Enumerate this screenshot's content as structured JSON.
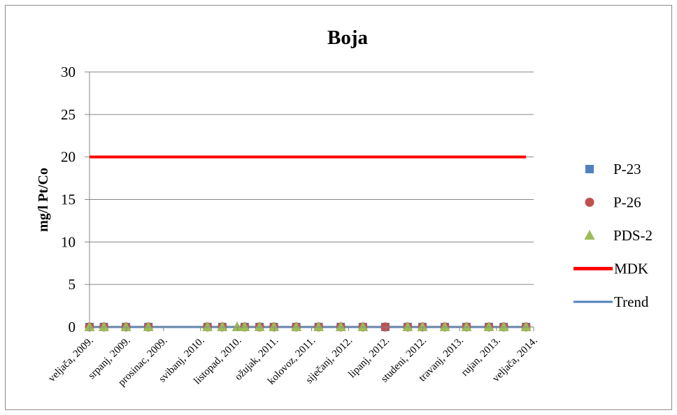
{
  "chart_data": {
    "type": "scatter",
    "title": "Boja",
    "ylabel": "mg/l Pt/Co",
    "xlabel": "",
    "ylim": [
      0,
      30
    ],
    "yticks": [
      0,
      5,
      10,
      15,
      20,
      25,
      30
    ],
    "xlim": [
      "2009-02-01",
      "2014-02-01"
    ],
    "xtick_labels": [
      "veljača, 2009.",
      "srpanj, 2009.",
      "prosinac, 2009.",
      "svibanj, 2010.",
      "listopad, 2010.",
      "ožujak, 2011.",
      "kolovoz, 2011.",
      "siječanj, 2012.",
      "lipanj, 2012.",
      "studeni, 2012.",
      "travanj, 2013.",
      "rujan, 2013.",
      "veljača, 2014."
    ],
    "legend_position": "right",
    "grid": "horizontal",
    "series": [
      {
        "name": "P-23",
        "marker": "square",
        "color": "#4f81bd",
        "x": [
          "2009-02-01",
          "2009-04-01",
          "2009-07-01",
          "2009-10-01",
          "2010-06-01",
          "2010-08-01",
          "2010-11-01",
          "2011-01-01",
          "2011-03-01",
          "2011-06-01",
          "2011-09-01",
          "2011-12-01",
          "2012-03-01",
          "2012-06-01",
          "2012-09-01",
          "2012-11-01",
          "2013-02-01",
          "2013-05-01",
          "2013-08-01",
          "2013-10-01",
          "2014-01-01"
        ],
        "values": [
          0,
          0,
          0,
          0,
          0,
          0,
          0,
          0,
          0,
          0,
          0,
          0,
          0,
          0,
          0,
          0,
          0,
          0,
          0,
          0,
          0
        ]
      },
      {
        "name": "P-26",
        "marker": "circle",
        "color": "#c0504d",
        "x": [
          "2009-02-01",
          "2009-04-01",
          "2009-07-01",
          "2009-10-01",
          "2010-06-01",
          "2010-08-01",
          "2010-11-01",
          "2011-01-01",
          "2011-03-01",
          "2011-06-01",
          "2011-09-01",
          "2011-12-01",
          "2012-03-01",
          "2012-06-01",
          "2012-09-01",
          "2012-11-01",
          "2013-02-01",
          "2013-05-01",
          "2013-08-01",
          "2013-10-01",
          "2014-01-01"
        ],
        "values": [
          0,
          0,
          0,
          0,
          0,
          0,
          0,
          0,
          0,
          0,
          0,
          0,
          0,
          0,
          0,
          0,
          0,
          0,
          0,
          0,
          0
        ]
      },
      {
        "name": "PDS-2",
        "marker": "triangle",
        "color": "#9bbb59",
        "x": [
          "2009-02-01",
          "2009-04-01",
          "2009-07-01",
          "2009-10-01",
          "2010-06-01",
          "2010-08-01",
          "2010-10-01",
          "2010-11-01",
          "2011-01-01",
          "2011-03-01",
          "2011-06-01",
          "2011-09-01",
          "2011-12-01",
          "2012-03-01",
          "2012-09-01",
          "2012-11-01",
          "2013-02-01",
          "2013-05-01",
          "2013-08-01",
          "2013-10-01",
          "2014-01-01"
        ],
        "values": [
          0,
          0,
          0,
          0,
          0,
          0,
          0,
          0,
          0,
          0,
          0,
          0,
          0,
          0,
          0,
          0,
          0,
          0,
          0,
          0,
          0
        ]
      },
      {
        "name": "MDK",
        "type": "line",
        "color": "#ff0000",
        "x": [
          "2009-02-01",
          "2014-01-01"
        ],
        "values": [
          20,
          20
        ]
      },
      {
        "name": "Trend",
        "type": "line",
        "color": "#4f81bd",
        "x": [
          "2009-02-01",
          "2014-01-01"
        ],
        "values": [
          0,
          0
        ]
      }
    ]
  }
}
